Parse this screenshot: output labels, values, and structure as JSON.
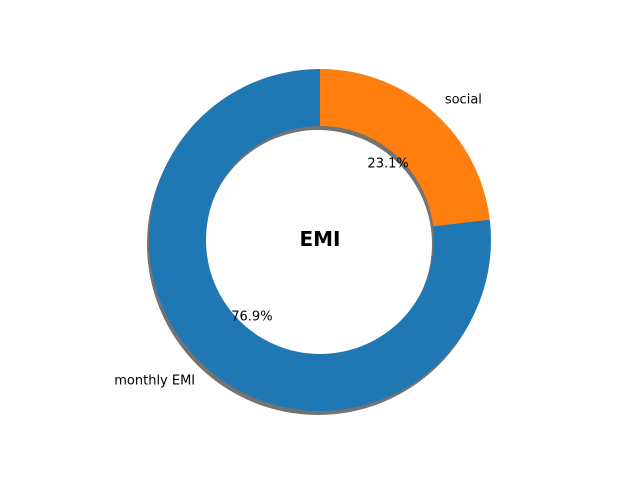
{
  "chart_data": {
    "type": "pie",
    "donut": true,
    "shadow": true,
    "start_angle_deg": 90,
    "direction": "counterclockwise",
    "center_label": "EMI",
    "slices": [
      {
        "label": "monthly EMI",
        "value": 76.9,
        "pct_label": "76.9%",
        "color": "#1f77b4"
      },
      {
        "label": "social",
        "value": 23.1,
        "pct_label": "23.1%",
        "color": "#ff7f0e"
      }
    ]
  }
}
